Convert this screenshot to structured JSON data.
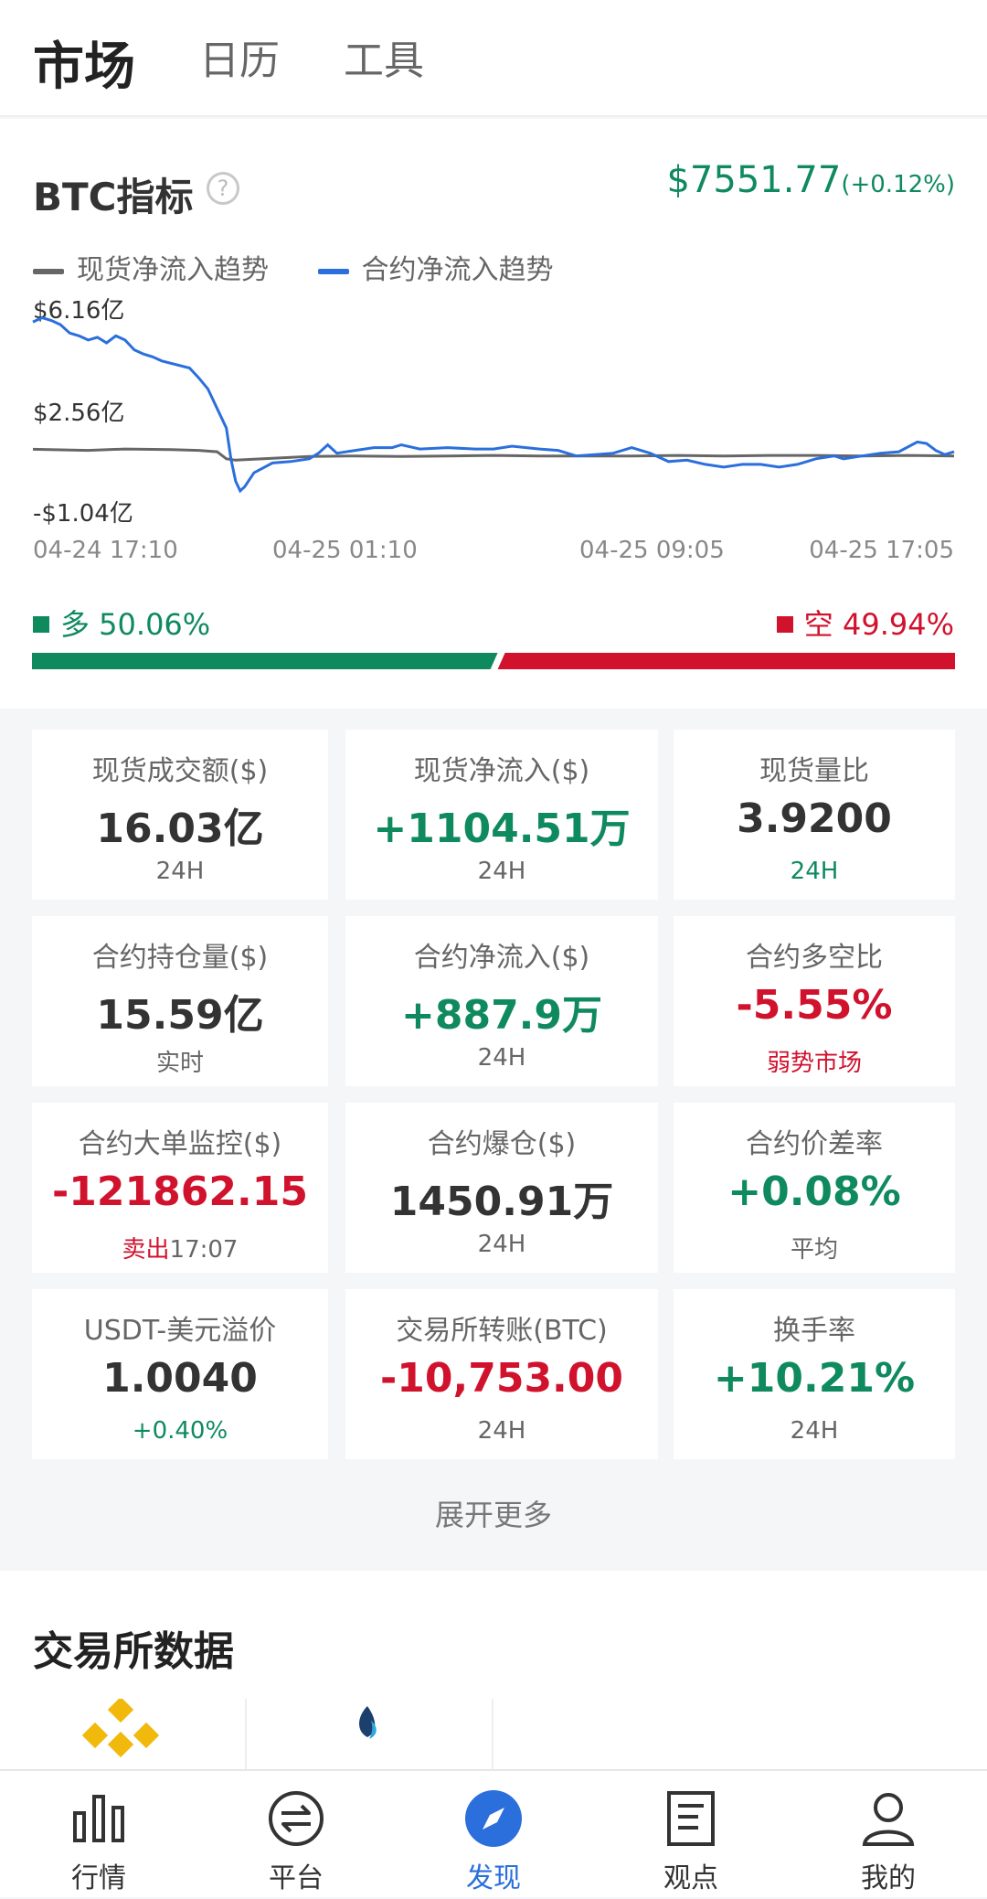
{
  "header": {
    "tabs": [
      {
        "label": "市场",
        "active": true
      },
      {
        "label": "日历",
        "active": false
      },
      {
        "label": "工具",
        "active": false
      }
    ]
  },
  "btc": {
    "title": "BTC指标",
    "help_icon": "question-circle-icon",
    "price": "$7551.77",
    "change": "(+0.12%)",
    "legend": [
      {
        "label": "现货净流入趋势",
        "color": "#666666"
      },
      {
        "label": "合约净流入趋势",
        "color": "#2a6fdc"
      }
    ],
    "long_label": "多 50.06%",
    "short_label": "空 49.94%",
    "long_ratio": 0.5006,
    "colors": {
      "up": "#0f8a5f",
      "down": "#d0122d",
      "accent": "#2a6fdc"
    }
  },
  "chart_data": {
    "type": "line",
    "y_tick_labels": [
      "$6.16亿",
      "$2.56亿",
      "-$1.04亿"
    ],
    "x_tick_labels": [
      "04-24 17:10",
      "04-25 01:10",
      "04-25 09:05",
      "04-25 17:05"
    ],
    "ylim": [
      -1.04,
      6.16
    ],
    "series": [
      {
        "name": "现货净流入趋势",
        "color": "#666666",
        "x": [
          0,
          0.03,
          0.06,
          0.1,
          0.15,
          0.18,
          0.2,
          0.21,
          0.22,
          0.25,
          0.3,
          0.35,
          0.4,
          0.45,
          0.5,
          0.55,
          0.6,
          0.65,
          0.7,
          0.75,
          0.8,
          0.85,
          0.9,
          0.95,
          1.0
        ],
        "values": [
          1.14,
          1.12,
          1.1,
          1.15,
          1.13,
          1.1,
          1.05,
          0.8,
          0.75,
          0.8,
          0.88,
          0.9,
          0.88,
          0.9,
          0.92,
          0.9,
          0.9,
          0.9,
          0.92,
          0.9,
          0.92,
          0.92,
          0.9,
          0.92,
          0.9
        ]
      },
      {
        "name": "合约净流入趋势",
        "color": "#2a6fdc",
        "x": [
          0,
          0.01,
          0.02,
          0.03,
          0.04,
          0.05,
          0.06,
          0.07,
          0.08,
          0.09,
          0.1,
          0.11,
          0.12,
          0.13,
          0.14,
          0.17,
          0.18,
          0.19,
          0.2,
          0.21,
          0.215,
          0.22,
          0.225,
          0.23,
          0.24,
          0.26,
          0.28,
          0.3,
          0.31,
          0.32,
          0.33,
          0.35,
          0.37,
          0.39,
          0.4,
          0.42,
          0.45,
          0.48,
          0.5,
          0.52,
          0.55,
          0.57,
          0.59,
          0.61,
          0.63,
          0.65,
          0.67,
          0.69,
          0.71,
          0.73,
          0.75,
          0.77,
          0.79,
          0.81,
          0.83,
          0.85,
          0.87,
          0.88,
          0.9,
          0.92,
          0.94,
          0.96,
          0.97,
          0.98,
          0.99,
          1.0
        ],
        "values": [
          5.7,
          5.85,
          5.75,
          5.6,
          5.3,
          5.2,
          5.05,
          5.15,
          4.95,
          5.2,
          5.05,
          4.7,
          4.55,
          4.45,
          4.3,
          4.05,
          3.7,
          3.3,
          2.6,
          1.9,
          0.8,
          0.0,
          -0.35,
          -0.2,
          0.3,
          0.65,
          0.7,
          0.8,
          1.0,
          1.3,
          1.0,
          1.1,
          1.2,
          1.2,
          1.3,
          1.15,
          1.2,
          1.15,
          1.15,
          1.25,
          1.15,
          1.1,
          0.9,
          0.95,
          1.0,
          1.2,
          1.0,
          0.7,
          0.75,
          0.6,
          0.5,
          0.6,
          0.6,
          0.5,
          0.6,
          0.8,
          0.9,
          0.8,
          0.9,
          1.0,
          1.05,
          1.4,
          1.35,
          1.1,
          0.95,
          1.05
        ]
      }
    ]
  },
  "metrics": [
    {
      "label": "现货成交额($)",
      "value": "16.03亿",
      "sub": "24H",
      "vcls": "",
      "scls": ""
    },
    {
      "label": "现货净流入($)",
      "value": "+1104.51万",
      "sub": "24H",
      "vcls": "up",
      "scls": ""
    },
    {
      "label": "现货量比",
      "value": "3.9200",
      "sub": "24H",
      "vcls": "",
      "scls": "up"
    },
    {
      "label": "合约持仓量($)",
      "value": "15.59亿",
      "sub": "实时",
      "vcls": "",
      "scls": ""
    },
    {
      "label": "合约净流入($)",
      "value": "+887.9万",
      "sub": "24H",
      "vcls": "up",
      "scls": ""
    },
    {
      "label": "合约多空比",
      "value": "-5.55%",
      "sub": "弱势市场",
      "vcls": "down",
      "scls": "down"
    },
    {
      "label": "合约大单监控($)",
      "value": "-121862.15",
      "sub_prefix": "卖出",
      "sub": "17:07",
      "vcls": "down",
      "scls": ""
    },
    {
      "label": "合约爆仓($)",
      "value": "1450.91万",
      "sub": "24H",
      "vcls": "",
      "scls": ""
    },
    {
      "label": "合约价差率",
      "value": "+0.08%",
      "sub": "平均",
      "vcls": "up",
      "scls": ""
    },
    {
      "label": "USDT-美元溢价",
      "value": "1.0040",
      "sub": "+0.40%",
      "vcls": "",
      "scls": "up"
    },
    {
      "label": "交易所转账(BTC)",
      "value": "-10,753.00",
      "sub": "24H",
      "vcls": "down",
      "scls": ""
    },
    {
      "label": "换手率",
      "value": "+10.21%",
      "sub": "24H",
      "vcls": "up",
      "scls": ""
    }
  ],
  "expand_more": "展开更多",
  "exchange": {
    "title": "交易所数据",
    "logos": [
      "binance-logo",
      "huobi-logo"
    ]
  },
  "nav": [
    {
      "label": "行情",
      "icon": "bar-chart-icon",
      "active": false
    },
    {
      "label": "平台",
      "icon": "exchange-arrows-icon",
      "active": false
    },
    {
      "label": "发现",
      "icon": "compass-icon",
      "active": true
    },
    {
      "label": "观点",
      "icon": "document-icon",
      "active": false
    },
    {
      "label": "我的",
      "icon": "user-icon",
      "active": false
    }
  ]
}
